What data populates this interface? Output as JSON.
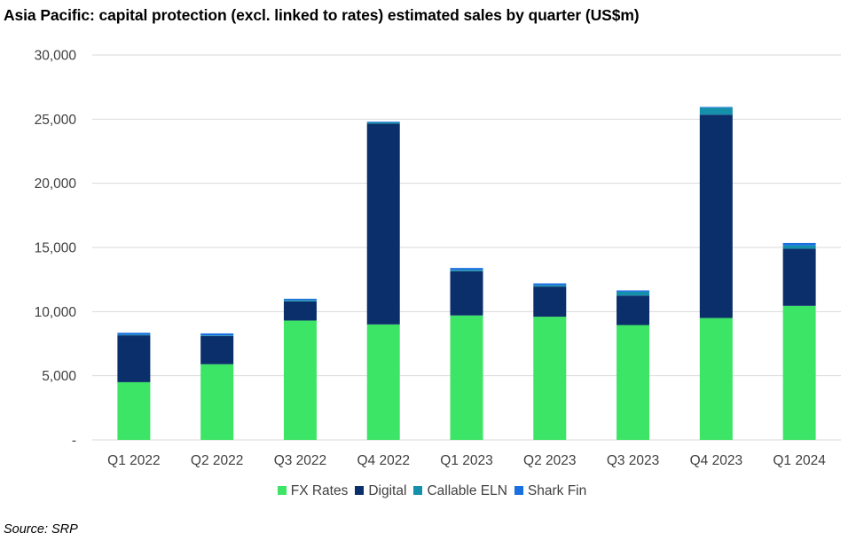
{
  "title": "Asia Pacific: capital protection (excl. linked to rates) estimated sales by quarter (US$m)",
  "source": "Source: SRP",
  "chart_data": {
    "type": "bar",
    "stacked": true,
    "title": "Asia Pacific: capital protection (excl. linked to rates) estimated sales by quarter (US$m)",
    "xlabel": "",
    "ylabel": "",
    "ylim": [
      0,
      30000
    ],
    "yticks": [
      0,
      5000,
      10000,
      15000,
      20000,
      25000,
      30000
    ],
    "ytick_labels": [
      "-",
      "5,000",
      "10,000",
      "15,000",
      "20,000",
      "25,000",
      "30,000"
    ],
    "grid": true,
    "legend_position": "bottom",
    "categories": [
      "Q1 2022",
      "Q2 2022",
      "Q3 2022",
      "Q4 2022",
      "Q1 2023",
      "Q2 2023",
      "Q3 2023",
      "Q4 2023",
      "Q1 2024"
    ],
    "series": [
      {
        "name": "FX Rates",
        "color": "#3de566",
        "values": [
          4500,
          5900,
          9300,
          9000,
          9700,
          9600,
          8950,
          9500,
          10450
        ]
      },
      {
        "name": "Digital",
        "color": "#0a2f6b",
        "values": [
          3650,
          2200,
          1500,
          15650,
          3450,
          2350,
          2300,
          15850,
          4450
        ]
      },
      {
        "name": "Callable ELN",
        "color": "#1490aa",
        "values": [
          50,
          50,
          100,
          100,
          100,
          100,
          300,
          550,
          250
        ]
      },
      {
        "name": "Shark Fin",
        "color": "#1a6fe0",
        "values": [
          150,
          150,
          100,
          50,
          150,
          150,
          100,
          50,
          200
        ]
      }
    ]
  }
}
